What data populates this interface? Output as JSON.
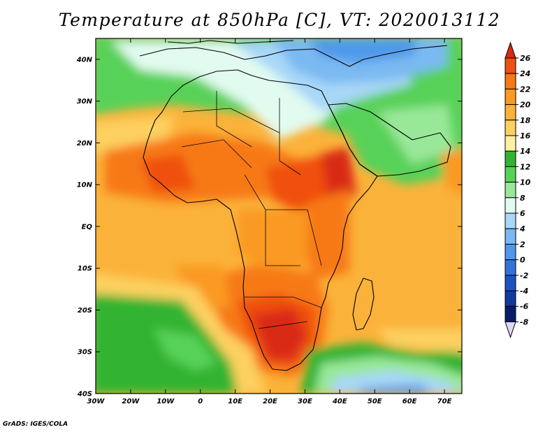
{
  "title": "Temperature at 850hPa [C], VT: 2020013112",
  "credit": "GrADS: IGES/COLA",
  "lat_labels": [
    "40N",
    "30N",
    "20N",
    "10N",
    "EQ",
    "10S",
    "20S",
    "30S",
    "40S"
  ],
  "lat_values": [
    40,
    30,
    20,
    10,
    0,
    -10,
    -20,
    -30,
    -40
  ],
  "lon_labels": [
    "30W",
    "20W",
    "10W",
    "0",
    "10E",
    "20E",
    "30E",
    "40E",
    "50E",
    "60E",
    "70E"
  ],
  "lon_values": [
    -30,
    -20,
    -10,
    0,
    10,
    20,
    30,
    40,
    50,
    60,
    70
  ],
  "extent": {
    "lon": [
      -30,
      75
    ],
    "lat": [
      -40,
      45
    ]
  },
  "colorbar": {
    "labels": [
      "26",
      "24",
      "22",
      "20",
      "18",
      "16",
      "14",
      "12",
      "10",
      "8",
      "6",
      "4",
      "2",
      "0",
      "-2",
      "-4",
      "-6",
      "-8"
    ],
    "colors": [
      "#d92a14",
      "#f0500f",
      "#f77914",
      "#fa9a22",
      "#fbb23a",
      "#fdd060",
      "#fff1a0",
      "#32b432",
      "#58d158",
      "#99e899",
      "#e2fbf0",
      "#a8d7f8",
      "#7ab9f2",
      "#4f98ea",
      "#3173dc",
      "#1c53c3",
      "#113a9d",
      "#0b1b6c",
      "#dcd8f8"
    ]
  }
}
